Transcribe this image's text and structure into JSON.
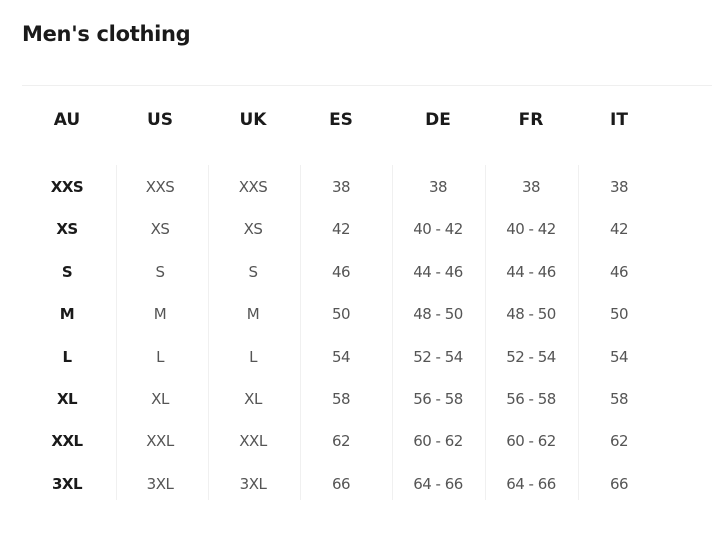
{
  "title": "Men's clothing",
  "columns": [
    "AU",
    "US",
    "UK",
    "ES",
    "DE",
    "FR",
    "IT"
  ],
  "rows": [
    [
      "XXS",
      "XXS",
      "XXS",
      "38",
      "38",
      "38",
      "38"
    ],
    [
      "XS",
      "XS",
      "XS",
      "42",
      "40 - 42",
      "40 - 42",
      "42"
    ],
    [
      "S",
      "S",
      "S",
      "46",
      "44 - 46",
      "44 - 46",
      "46"
    ],
    [
      "M",
      "M",
      "M",
      "50",
      "48 - 50",
      "48 - 50",
      "50"
    ],
    [
      "L",
      "L",
      "L",
      "54",
      "52 - 54",
      "52 - 54",
      "54"
    ],
    [
      "XL",
      "XL",
      "XL",
      "58",
      "56 - 58",
      "56 - 58",
      "58"
    ],
    [
      "XXL",
      "XXL",
      "XXL",
      "62",
      "60 - 62",
      "60 - 62",
      "62"
    ],
    [
      "3XL",
      "3XL",
      "3XL",
      "66",
      "64 - 66",
      "64 - 66",
      "66"
    ]
  ]
}
